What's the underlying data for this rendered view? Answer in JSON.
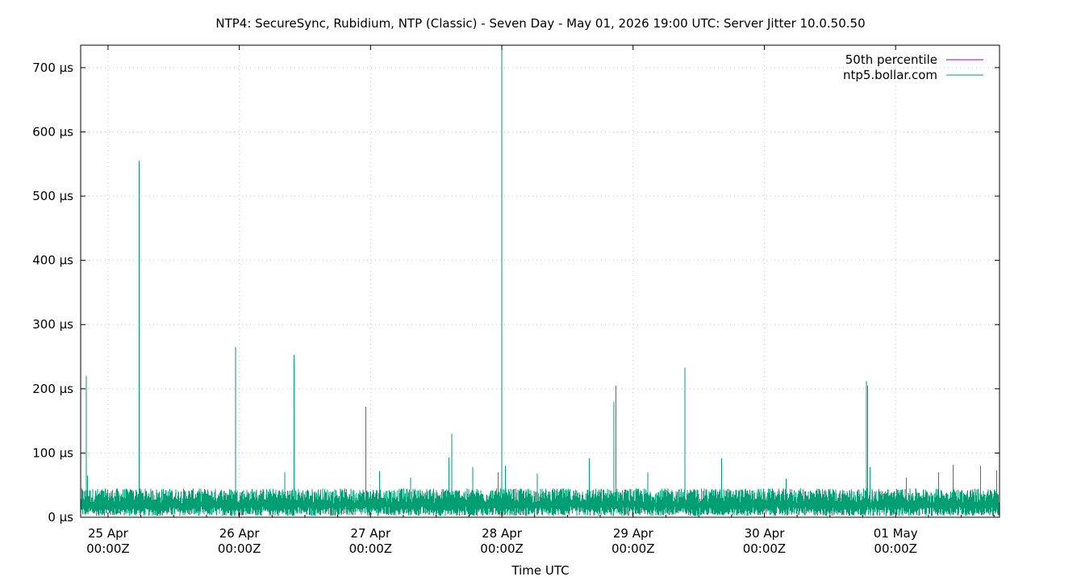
{
  "chart_data": {
    "type": "line",
    "title": "NTP4: SecureSync, Rubidium, NTP (Classic) - Seven Day - May 01, 2026 19:00 UTC: Server Jitter 10.0.50.50",
    "xlabel": "Time UTC",
    "ylabel": "",
    "unit": "µs",
    "ylim": [
      0,
      735
    ],
    "xlim": [
      "2026-04-24T19:00Z",
      "2026-05-01T19:00Z"
    ],
    "yticks": [
      0,
      100,
      200,
      300,
      400,
      500,
      600,
      700
    ],
    "xticks": [
      {
        "x": "2026-04-25T00:00Z",
        "line1": "25 Apr",
        "line2": "00:00Z"
      },
      {
        "x": "2026-04-26T00:00Z",
        "line1": "26 Apr",
        "line2": "00:00Z"
      },
      {
        "x": "2026-04-27T00:00Z",
        "line1": "27 Apr",
        "line2": "00:00Z"
      },
      {
        "x": "2026-04-28T00:00Z",
        "line1": "28 Apr",
        "line2": "00:00Z"
      },
      {
        "x": "2026-04-29T00:00Z",
        "line1": "29 Apr",
        "line2": "00:00Z"
      },
      {
        "x": "2026-04-30T00:00Z",
        "line1": "30 Apr",
        "line2": "00:00Z"
      },
      {
        "x": "2026-05-01T00:00Z",
        "line1": "01 May",
        "line2": "00:00Z"
      }
    ],
    "grid": true,
    "legend_position": "top-right",
    "series": [
      {
        "name": "50th percentile",
        "color": "#9400d3",
        "values": []
      },
      {
        "name": "ntp5.bollar.com",
        "color": "#009e73",
        "baseline_range": [
          2,
          45
        ],
        "spikes": [
          {
            "x": "2026-04-24T20:00Z",
            "y": 220
          },
          {
            "x": "2026-04-24T20:15Z",
            "y": 65
          },
          {
            "x": "2026-04-25T05:40Z",
            "y": 555
          },
          {
            "x": "2026-04-25T23:20Z",
            "y": 265
          },
          {
            "x": "2026-04-26T08:20Z",
            "y": 70
          },
          {
            "x": "2026-04-26T10:00Z",
            "y": 253
          },
          {
            "x": "2026-04-26T23:10Z",
            "y": 172
          },
          {
            "x": "2026-04-27T01:40Z",
            "y": 72
          },
          {
            "x": "2026-04-27T07:20Z",
            "y": 62
          },
          {
            "x": "2026-04-27T14:20Z",
            "y": 93
          },
          {
            "x": "2026-04-27T14:50Z",
            "y": 130
          },
          {
            "x": "2026-04-27T18:40Z",
            "y": 78
          },
          {
            "x": "2026-04-27T23:20Z",
            "y": 70
          },
          {
            "x": "2026-04-28T00:00Z",
            "y": 735
          },
          {
            "x": "2026-04-28T00:40Z",
            "y": 80
          },
          {
            "x": "2026-04-28T06:30Z",
            "y": 68
          },
          {
            "x": "2026-04-28T16:00Z",
            "y": 92
          },
          {
            "x": "2026-04-28T20:30Z",
            "y": 180
          },
          {
            "x": "2026-04-28T20:50Z",
            "y": 205
          },
          {
            "x": "2026-04-29T02:40Z",
            "y": 70
          },
          {
            "x": "2026-04-29T09:30Z",
            "y": 233
          },
          {
            "x": "2026-04-29T16:10Z",
            "y": 92
          },
          {
            "x": "2026-04-30T04:00Z",
            "y": 60
          },
          {
            "x": "2026-04-30T18:40Z",
            "y": 212
          },
          {
            "x": "2026-04-30T18:55Z",
            "y": 205
          },
          {
            "x": "2026-04-30T19:20Z",
            "y": 78
          },
          {
            "x": "2026-05-01T02:00Z",
            "y": 62
          },
          {
            "x": "2026-05-01T07:50Z",
            "y": 70
          },
          {
            "x": "2026-05-01T10:30Z",
            "y": 82
          },
          {
            "x": "2026-05-01T15:30Z",
            "y": 80
          },
          {
            "x": "2026-05-01T18:30Z",
            "y": 73
          }
        ]
      }
    ]
  }
}
